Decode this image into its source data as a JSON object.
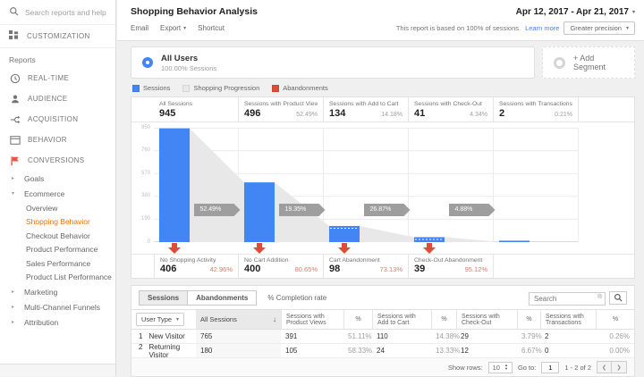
{
  "topbar": {
    "search_placeholder": "Search reports and help"
  },
  "sidebar": {
    "customization_label": "CUSTOMIZATION",
    "reports_label": "Reports",
    "nav": [
      {
        "icon": "clock",
        "label": "REAL-TIME"
      },
      {
        "icon": "person",
        "label": "AUDIENCE"
      },
      {
        "icon": "acquisition",
        "label": "ACQUISITION"
      },
      {
        "icon": "window",
        "label": "BEHAVIOR"
      },
      {
        "icon": "flag",
        "label": "CONVERSIONS"
      }
    ],
    "conversions_children": [
      {
        "label": "Goals",
        "state": "collapsed"
      },
      {
        "label": "Ecommerce",
        "state": "expanded"
      }
    ],
    "ecommerce_children": [
      {
        "label": "Overview",
        "active": false
      },
      {
        "label": "Shopping Behavior",
        "active": true
      },
      {
        "label": "Checkout Behavior",
        "active": false
      },
      {
        "label": "Product Performance",
        "active": false
      },
      {
        "label": "Sales Performance",
        "active": false
      },
      {
        "label": "Product List Performance",
        "active": false
      }
    ],
    "other_sections": [
      {
        "label": "Marketing"
      },
      {
        "label": "Multi-Channel Funnels"
      },
      {
        "label": "Attribution"
      }
    ]
  },
  "header": {
    "title": "Shopping Behavior Analysis",
    "date_range": "Apr 12, 2017 - Apr 21, 2017",
    "actions": {
      "email": "Email",
      "export": "Export",
      "shortcut": "Shortcut"
    },
    "sampling_note": "This report is based on 100% of sessions.",
    "learn_more": "Learn more",
    "precision_button": "Greater precision"
  },
  "segments": {
    "all_users": {
      "name": "All Users",
      "detail": "100.00% Sessions"
    },
    "add_segment": "+ Add Segment"
  },
  "legend": [
    {
      "label": "Sessions",
      "color": "#4285f4"
    },
    {
      "label": "Shopping Progression",
      "color": "#e8e8e8"
    },
    {
      "label": "Abandonments",
      "color": "#dd4b39"
    }
  ],
  "chart_data": {
    "type": "funnel",
    "title": "Shopping Behavior Analysis funnel",
    "ylim": [
      0,
      950
    ],
    "yticks": [
      950,
      760,
      570,
      380,
      190,
      0
    ],
    "bar_color": "#4285f4",
    "progression_color": "#e8e8e8",
    "abandonment_color": "#dd4b39",
    "stages": [
      {
        "label": "All Sessions",
        "value": 945,
        "pct": "",
        "dashed_marker": false
      },
      {
        "label": "Sessions with Product Views",
        "value": 496,
        "pct": "52.49%",
        "dashed_marker": false
      },
      {
        "label": "Sessions with Add to Cart",
        "value": 134,
        "pct": "14.18%",
        "dashed_marker": true
      },
      {
        "label": "Sessions with Check-Out",
        "value": 41,
        "pct": "4.34%",
        "dashed_marker": true
      },
      {
        "label": "Sessions with Transactions",
        "value": 2,
        "pct": "0.21%",
        "dashed_marker": false
      }
    ],
    "progression_badges": [
      "52.49%",
      "19.35%",
      "26.87%",
      "4.88%"
    ],
    "abandonments": [
      {
        "label": "No Shopping Activity",
        "value": 406,
        "pct": "42.96%"
      },
      {
        "label": "No Cart Addition",
        "value": 400,
        "pct": "80.65%"
      },
      {
        "label": "Cart Abandonment",
        "value": 98,
        "pct": "73.13%"
      },
      {
        "label": "Check-Out Abandonment",
        "value": 39,
        "pct": "95.12%"
      }
    ]
  },
  "table": {
    "tabs": [
      {
        "label": "Sessions",
        "active": true
      },
      {
        "label": "Abandonments",
        "active": false
      }
    ],
    "completion_toggle": "% Completion rate",
    "search_placeholder": "Search",
    "columns": [
      "User Type",
      "All Sessions",
      "Sessions with Product Views",
      "%",
      "Sessions with Add to Cart",
      "%",
      "Sessions with Check-Out",
      "%",
      "Sessions with Transactions",
      "%"
    ],
    "rows": [
      {
        "index": "1",
        "user_type": "New Visitor",
        "cells": [
          "765",
          "391",
          "51.11%",
          "110",
          "14.38%",
          "29",
          "3.79%",
          "2",
          "0.26%"
        ]
      },
      {
        "index": "2",
        "user_type": "Returning Visitor",
        "cells": [
          "180",
          "105",
          "58.33%",
          "24",
          "13.33%",
          "12",
          "6.67%",
          "0",
          "0.00%"
        ]
      }
    ],
    "footer": {
      "show_rows_label": "Show rows:",
      "show_rows_value": "10",
      "goto_label": "Go to:",
      "goto_value": "1",
      "range_text": "1 - 2 of 2"
    }
  }
}
